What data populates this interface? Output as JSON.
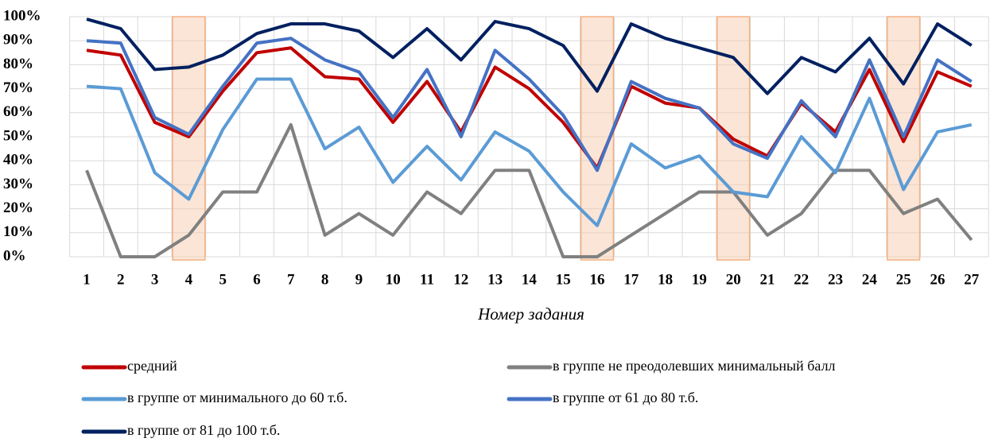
{
  "chart_data": {
    "type": "line",
    "x_label": "Номер задания",
    "categories": [
      "1",
      "2",
      "3",
      "4",
      "5",
      "6",
      "7",
      "8",
      "9",
      "10",
      "11",
      "12",
      "13",
      "14",
      "15",
      "16",
      "17",
      "18",
      "19",
      "20",
      "21",
      "22",
      "23",
      "24",
      "25",
      "26",
      "27"
    ],
    "highlight_categories": [
      "4",
      "16",
      "20",
      "25"
    ],
    "ylim": [
      0,
      100
    ],
    "yticks": [
      {
        "value": 0,
        "label": "0%"
      },
      {
        "value": 10,
        "label": "10%"
      },
      {
        "value": 20,
        "label": "20%"
      },
      {
        "value": 30,
        "label": "30%"
      },
      {
        "value": 40,
        "label": "40%"
      },
      {
        "value": 50,
        "label": "50%"
      },
      {
        "value": 60,
        "label": "60%"
      },
      {
        "value": 70,
        "label": "70%"
      },
      {
        "value": 80,
        "label": "80%"
      },
      {
        "value": 90,
        "label": "90%"
      },
      {
        "value": 100,
        "label": "100%"
      }
    ],
    "grid": true,
    "series": [
      {
        "name": "средний",
        "color": "#c00000",
        "values": [
          86,
          84,
          56,
          50,
          69,
          85,
          87,
          75,
          74,
          56,
          73,
          52,
          79,
          70,
          56,
          37,
          71,
          64,
          62,
          49,
          42,
          64,
          52,
          78,
          48,
          77,
          71
        ]
      },
      {
        "name": "в группе не преодолевших минимальный балл",
        "color": "#808080",
        "values": [
          36,
          0,
          0,
          9,
          27,
          27,
          55,
          9,
          18,
          9,
          27,
          18,
          36,
          36,
          0,
          0,
          9,
          18,
          27,
          27,
          9,
          18,
          36,
          36,
          18,
          24,
          7
        ]
      },
      {
        "name": "в группе от минимального  до 60 т.б.",
        "color": "#5b9bd5",
        "values": [
          71,
          70,
          35,
          24,
          53,
          74,
          74,
          45,
          54,
          31,
          46,
          32,
          52,
          44,
          27,
          13,
          47,
          37,
          42,
          27,
          25,
          50,
          35,
          66,
          28,
          52,
          55
        ]
      },
      {
        "name": "в группе от 61 до 80 т.б.",
        "color": "#4472c4",
        "values": [
          90,
          89,
          58,
          51,
          71,
          89,
          91,
          82,
          77,
          58,
          78,
          50,
          86,
          74,
          59,
          36,
          73,
          66,
          62,
          47,
          41,
          65,
          50,
          82,
          50,
          82,
          73
        ]
      },
      {
        "name": "в группе от 81 до 100 т.б.",
        "color": "#002060",
        "values": [
          99,
          95,
          78,
          79,
          84,
          93,
          97,
          97,
          94,
          83,
          95,
          82,
          98,
          95,
          88,
          69,
          97,
          91,
          87,
          83,
          68,
          83,
          77,
          91,
          72,
          97,
          88
        ]
      }
    ]
  }
}
